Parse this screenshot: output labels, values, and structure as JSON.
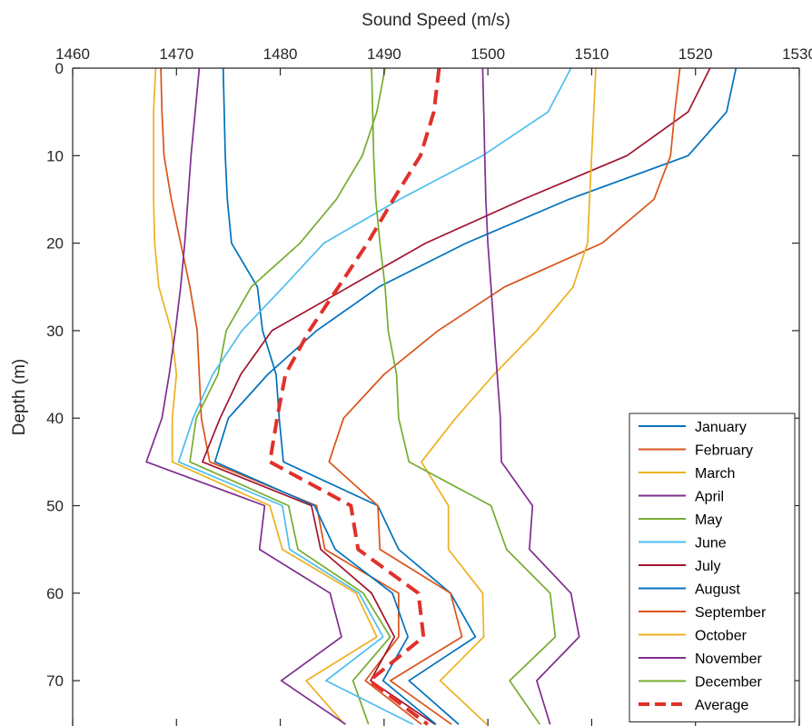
{
  "chart_data": {
    "type": "line",
    "title": "",
    "xlabel": "Sound Speed (m/s)",
    "ylabel": "Depth (m)",
    "xaxis_location": "top",
    "yaxis_reversed": true,
    "xlim": [
      1460,
      1530
    ],
    "ylim": [
      0,
      75
    ],
    "xticks": [
      1460,
      1470,
      1480,
      1490,
      1500,
      1510,
      1520,
      1530
    ],
    "yticks": [
      0,
      10,
      20,
      30,
      40,
      50,
      60,
      70
    ],
    "grid": false,
    "legend_position": "bottom-right",
    "depths": [
      0,
      5,
      10,
      15,
      20,
      25,
      30,
      35,
      40,
      45,
      50,
      55,
      60,
      65,
      70,
      75
    ],
    "series": [
      {
        "name": "January",
        "color": "#0072BD",
        "dashed": false,
        "values": [
          1474.5,
          1474.6,
          1474.7,
          1474.9,
          1475.3,
          1477.8,
          1478.3,
          1479.6,
          1479.9,
          1480.3,
          1489.4,
          1491.4,
          1496.4,
          1498.8,
          1492.4,
          1497.2
        ]
      },
      {
        "name": "February",
        "color": "#D95319",
        "dashed": false,
        "values": [
          1468.5,
          1468.6,
          1468.8,
          1469.5,
          1470.4,
          1471.3,
          1472.0,
          1472.2,
          1472.4,
          1473.2,
          1483.5,
          1484.3,
          1491.4,
          1491.4,
          1488.2,
          1493.6
        ]
      },
      {
        "name": "March",
        "color": "#EDB120",
        "dashed": false,
        "values": [
          1468.0,
          1467.8,
          1467.8,
          1467.8,
          1467.9,
          1468.3,
          1469.5,
          1470.0,
          1469.6,
          1469.6,
          1479.0,
          1480.2,
          1487.3,
          1489.3,
          1482.5,
          1486.2
        ]
      },
      {
        "name": "April",
        "color": "#7E2F8E",
        "dashed": false,
        "values": [
          1472.2,
          1471.8,
          1471.4,
          1471.1,
          1470.8,
          1470.4,
          1469.9,
          1469.3,
          1468.6,
          1467.1,
          1478.5,
          1478.0,
          1484.8,
          1485.9,
          1480.1,
          1486.3
        ]
      },
      {
        "name": "May",
        "color": "#77AC30",
        "dashed": false,
        "values": [
          1490.1,
          1489.3,
          1487.9,
          1485.4,
          1481.9,
          1477.2,
          1474.8,
          1474.0,
          1471.9,
          1471.3,
          1480.8,
          1481.7,
          1488.0,
          1490.6,
          1487.0,
          1488.5
        ]
      },
      {
        "name": "June",
        "color": "#4DBEEE",
        "dashed": false,
        "values": [
          1508.0,
          1505.8,
          1499.5,
          1491.5,
          1484.2,
          1480.3,
          1476.3,
          1473.5,
          1471.6,
          1470.2,
          1480.2,
          1480.9,
          1487.6,
          1489.9,
          1484.4,
          1492.8
        ]
      },
      {
        "name": "July",
        "color": "#A2142F",
        "dashed": false,
        "values": [
          1521.4,
          1519.3,
          1513.4,
          1503.4,
          1494.0,
          1486.6,
          1479.2,
          1476.2,
          1474.2,
          1472.5,
          1483.0,
          1483.9,
          1488.8,
          1491.0,
          1488.7,
          1494.9
        ]
      },
      {
        "name": "August",
        "color": "#0072BD",
        "dashed": false,
        "values": [
          1523.9,
          1523.0,
          1519.3,
          1507.8,
          1497.9,
          1489.5,
          1483.5,
          1478.8,
          1475.0,
          1473.7,
          1483.3,
          1485.3,
          1490.8,
          1492.3,
          1489.9,
          1495.0
        ]
      },
      {
        "name": "September",
        "color": "#D95319",
        "dashed": false,
        "values": [
          1518.5,
          1518.0,
          1517.6,
          1516.0,
          1511.0,
          1501.6,
          1495.2,
          1490.0,
          1486.1,
          1484.7,
          1489.4,
          1489.6,
          1496.4,
          1497.5,
          1490.6,
          1496.5
        ]
      },
      {
        "name": "October",
        "color": "#EDB120",
        "dashed": false,
        "values": [
          1510.4,
          1510.2,
          1510.0,
          1509.8,
          1509.6,
          1508.2,
          1504.7,
          1500.6,
          1496.9,
          1493.6,
          1496.2,
          1496.2,
          1499.5,
          1499.6,
          1495.4,
          1499.9
        ]
      },
      {
        "name": "November",
        "color": "#7E2F8E",
        "dashed": false,
        "values": [
          1499.5,
          1499.6,
          1499.7,
          1499.8,
          1500.0,
          1500.3,
          1500.6,
          1500.9,
          1501.2,
          1501.3,
          1504.3,
          1504.0,
          1508.0,
          1508.8,
          1504.7,
          1506.0
        ]
      },
      {
        "name": "December",
        "color": "#77AC30",
        "dashed": false,
        "values": [
          1488.8,
          1488.9,
          1489.0,
          1489.2,
          1489.6,
          1490.1,
          1490.4,
          1491.2,
          1491.4,
          1492.4,
          1500.3,
          1501.8,
          1506.0,
          1506.5,
          1502.1,
          1505.0
        ]
      },
      {
        "name": "Average",
        "color": "#E0312B",
        "dashed": true,
        "values": [
          1495.3,
          1494.8,
          1493.5,
          1490.9,
          1488.4,
          1485.6,
          1482.8,
          1480.5,
          1479.7,
          1479.0,
          1486.8,
          1487.5,
          1493.3,
          1493.8,
          1488.6,
          1494.2
        ]
      }
    ]
  }
}
